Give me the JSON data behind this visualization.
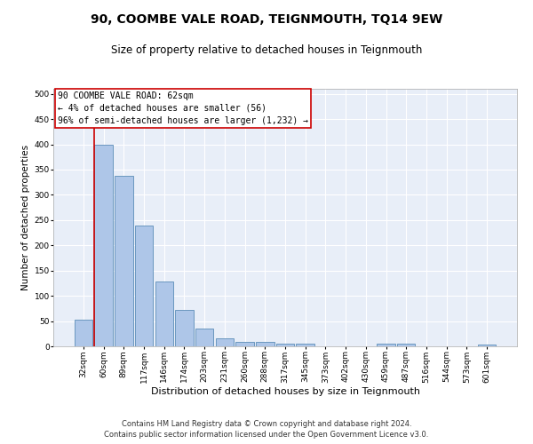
{
  "title": "90, COOMBE VALE ROAD, TEIGNMOUTH, TQ14 9EW",
  "subtitle": "Size of property relative to detached houses in Teignmouth",
  "xlabel": "Distribution of detached houses by size in Teignmouth",
  "ylabel": "Number of detached properties",
  "categories": [
    "32sqm",
    "60sqm",
    "89sqm",
    "117sqm",
    "146sqm",
    "174sqm",
    "203sqm",
    "231sqm",
    "260sqm",
    "288sqm",
    "317sqm",
    "345sqm",
    "373sqm",
    "402sqm",
    "430sqm",
    "459sqm",
    "487sqm",
    "516sqm",
    "544sqm",
    "573sqm",
    "601sqm"
  ],
  "values": [
    52,
    400,
    338,
    240,
    128,
    72,
    35,
    16,
    8,
    8,
    5,
    5,
    0,
    0,
    0,
    6,
    6,
    0,
    0,
    0,
    4
  ],
  "bar_color": "#aec6e8",
  "bar_edge_color": "#5b8db8",
  "vline_color": "#cc0000",
  "annotation_text": "90 COOMBE VALE ROAD: 62sqm\n← 4% of detached houses are smaller (56)\n96% of semi-detached houses are larger (1,232) →",
  "annotation_box_color": "#cc0000",
  "ylim": [
    0,
    510
  ],
  "yticks": [
    0,
    50,
    100,
    150,
    200,
    250,
    300,
    350,
    400,
    450,
    500
  ],
  "footer1": "Contains HM Land Registry data © Crown copyright and database right 2024.",
  "footer2": "Contains public sector information licensed under the Open Government Licence v3.0.",
  "background_color": "#e8eef8",
  "grid_color": "#ffffff",
  "title_fontsize": 10,
  "subtitle_fontsize": 8.5,
  "xlabel_fontsize": 8,
  "ylabel_fontsize": 7.5,
  "tick_fontsize": 6.5,
  "footer_fontsize": 6,
  "annotation_fontsize": 7
}
